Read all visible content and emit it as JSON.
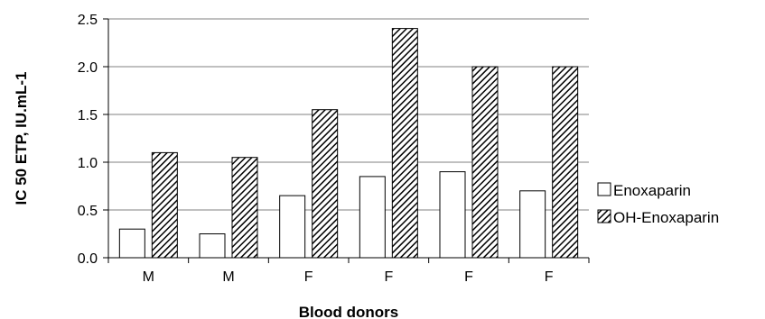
{
  "chart_data": {
    "type": "bar",
    "title": "",
    "xlabel": "Blood donors",
    "ylabel": "IC 50 ETP, IU.mL-1",
    "categories": [
      "M",
      "M",
      "F",
      "F",
      "F",
      "F"
    ],
    "series": [
      {
        "name": "Enoxaparin",
        "values": [
          0.3,
          0.25,
          0.65,
          0.85,
          0.9,
          0.7
        ],
        "fill": "#ffffff"
      },
      {
        "name": "OH-Enoxaparin",
        "values": [
          1.1,
          1.05,
          1.55,
          2.4,
          2.0,
          2.0
        ],
        "fill": "hatched"
      }
    ],
    "ylim": [
      0,
      2.5
    ],
    "yticks": [
      "0.0",
      "0.5",
      "1.0",
      "1.5",
      "2.0",
      "2.5"
    ],
    "grid": true,
    "legend": "right",
    "colors": {
      "stroke": "#000000",
      "gridline": "#808080",
      "background": "#ffffff"
    }
  }
}
